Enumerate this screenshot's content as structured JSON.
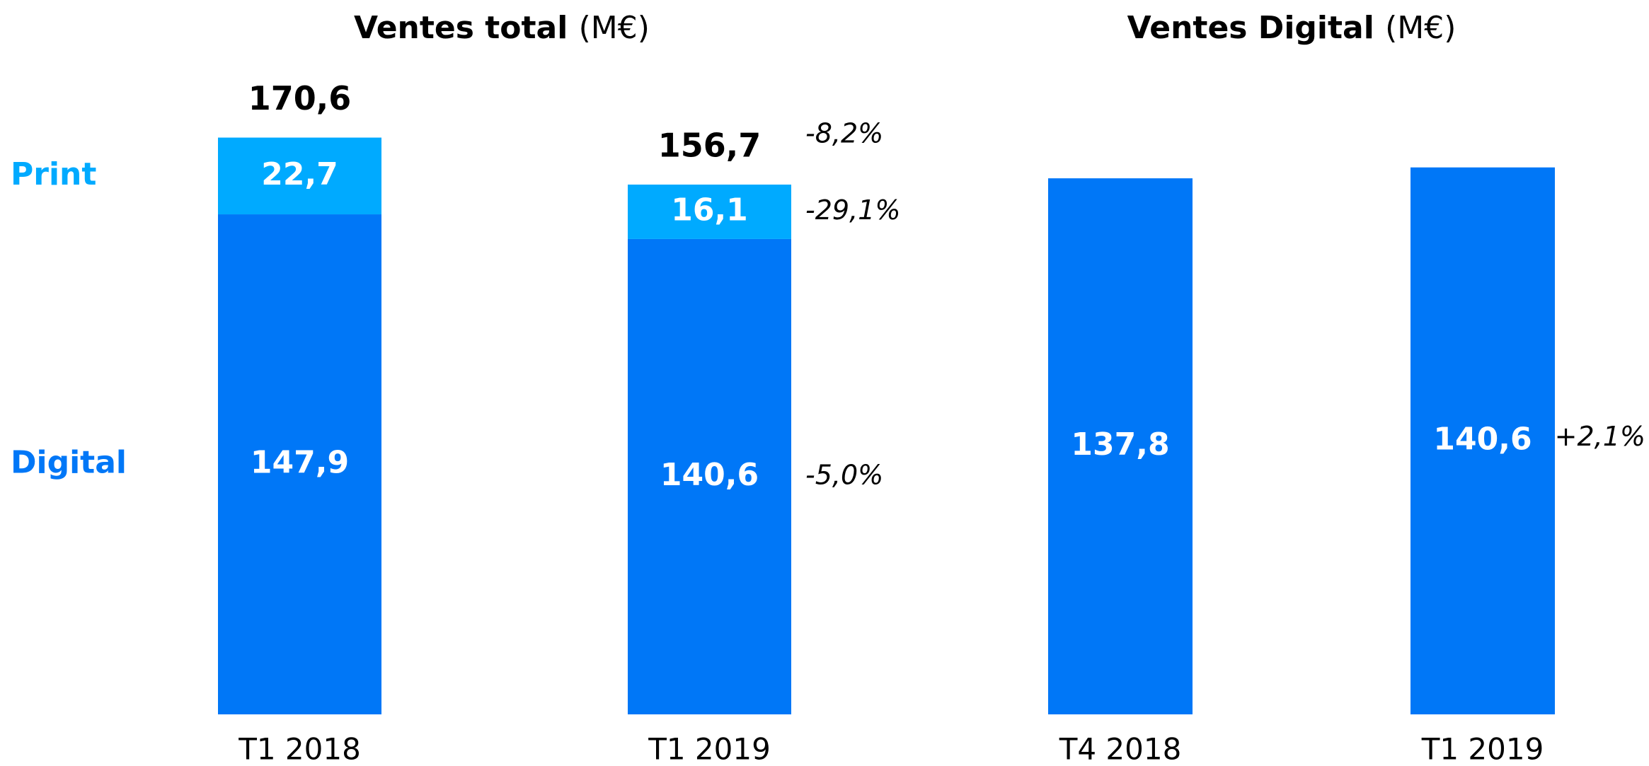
{
  "chart_data": [
    {
      "type": "stacked_bar",
      "title": "Ventes total",
      "unit": "(M€)",
      "categories": [
        "T1 2018",
        "T1 2019"
      ],
      "series": [
        {
          "name": "Digital",
          "color": "#0077f7",
          "values": [
            147.9,
            140.6
          ],
          "value_labels": [
            "147,9",
            "140,6"
          ],
          "change": "-5,0%"
        },
        {
          "name": "Print",
          "color": "#00aaff",
          "values": [
            22.7,
            16.1
          ],
          "value_labels": [
            "22,7",
            "16,1"
          ],
          "change": "-29,1%"
        }
      ],
      "totals": [
        170.6,
        156.7
      ],
      "total_labels": [
        "170,6",
        "156,7"
      ],
      "total_change": "-8,2%"
    },
    {
      "type": "bar",
      "title": "Ventes Digital",
      "unit": "(M€)",
      "categories": [
        "T4 2018",
        "T1 2019"
      ],
      "values": [
        137.8,
        140.6
      ],
      "value_labels": [
        "137,8",
        "140,6"
      ],
      "color": "#0077f7",
      "change": "+2,1%"
    }
  ]
}
